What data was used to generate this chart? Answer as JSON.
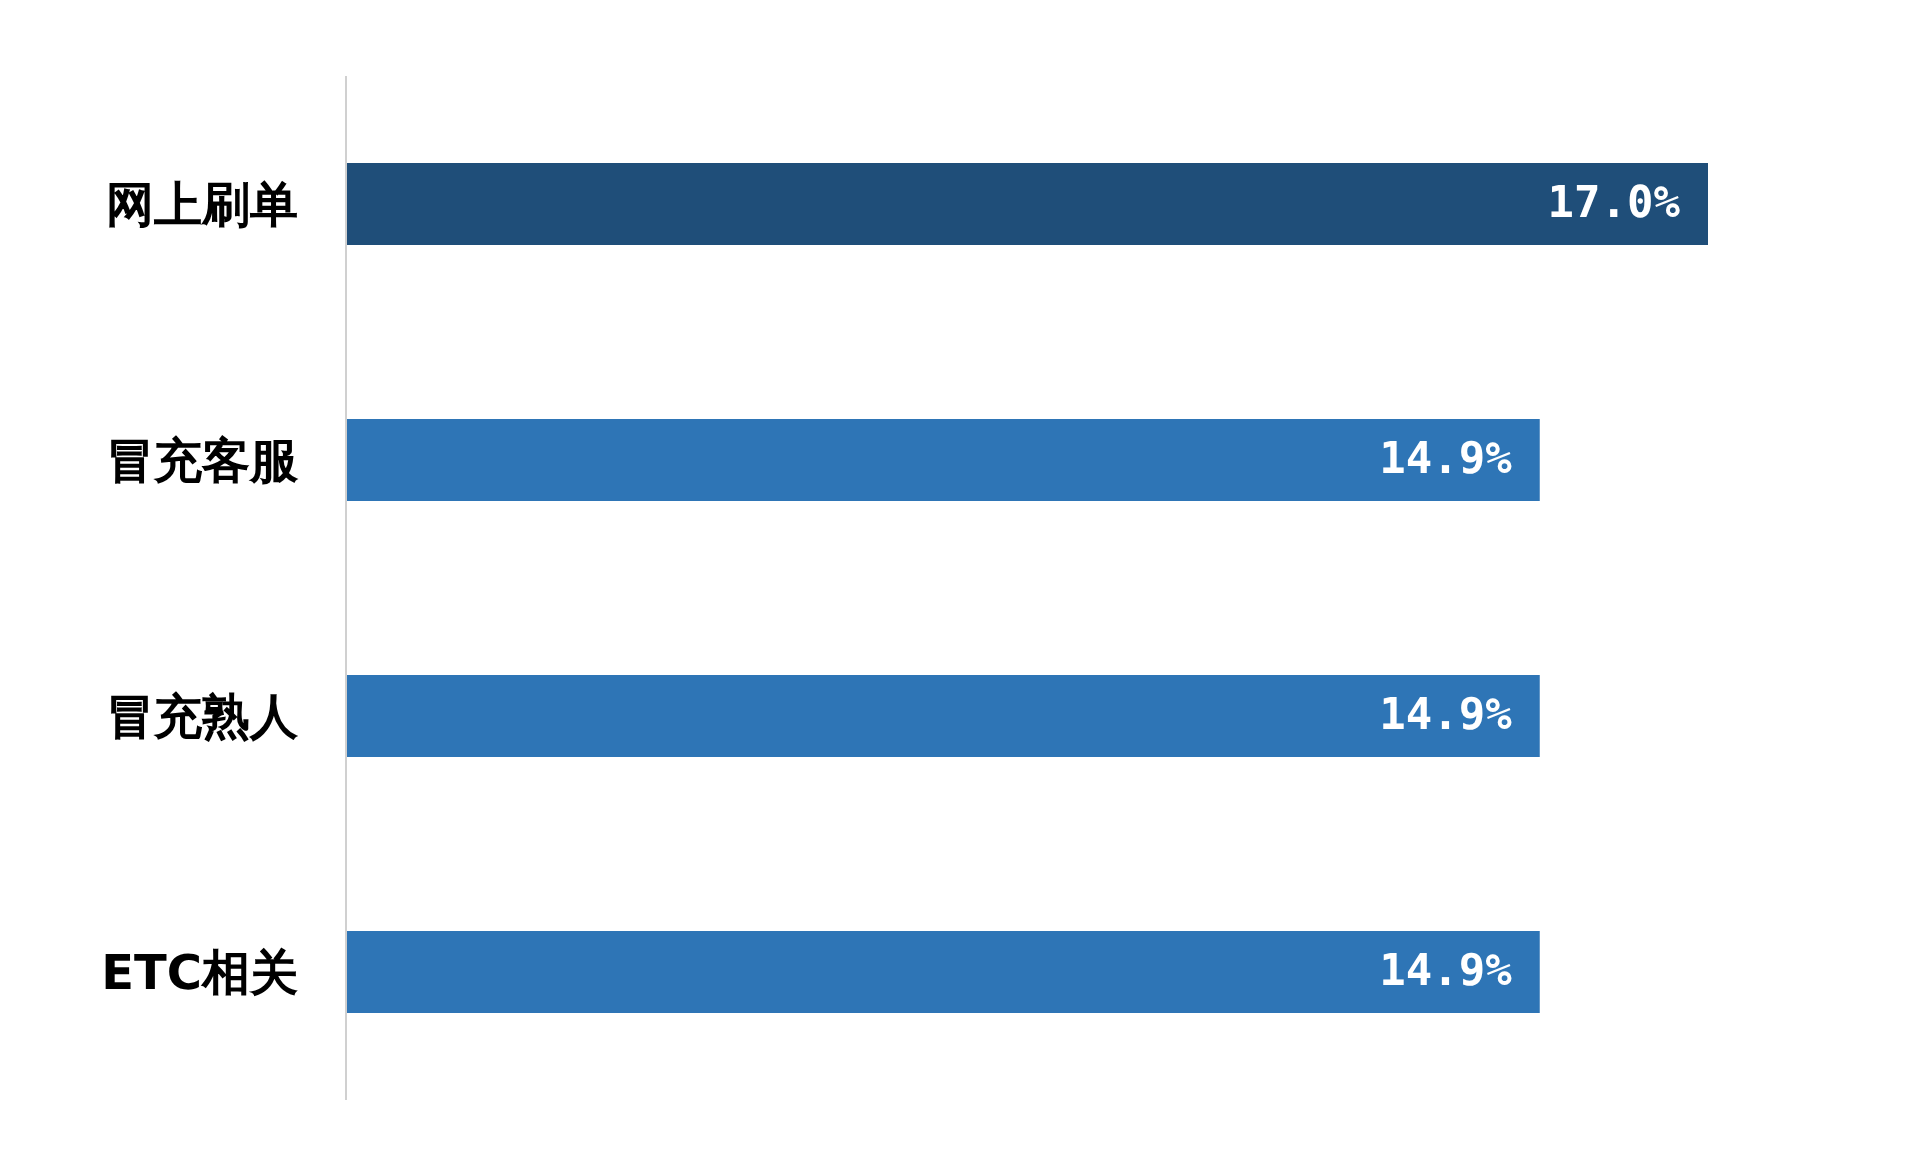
{
  "chart_data": {
    "type": "bar",
    "orientation": "horizontal",
    "categories": [
      "网上刷单",
      "冒充客服",
      "冒充熟人",
      "ETC相关"
    ],
    "values": [
      17.0,
      14.9,
      14.9,
      14.9
    ],
    "colors": [
      "#1f4e79",
      "#2e75b6",
      "#2e75b6",
      "#2e75b6"
    ],
    "value_labels": [
      "17.0%",
      "14.9%",
      "14.9%",
      "14.9%"
    ]
  }
}
